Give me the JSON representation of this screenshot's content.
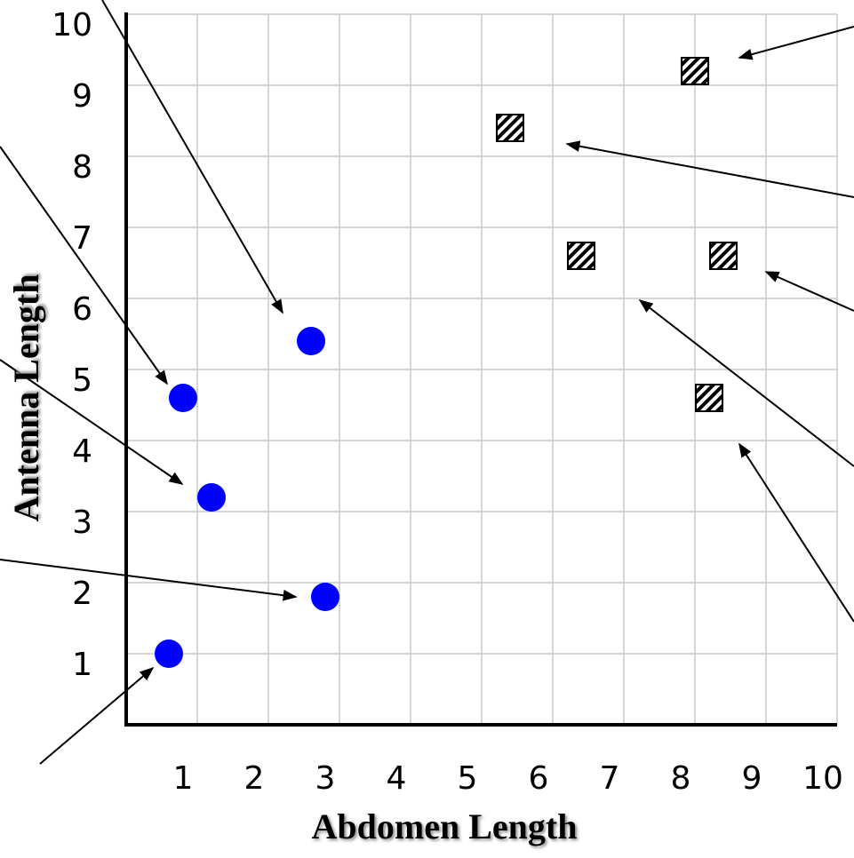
{
  "chart_data": {
    "type": "scatter",
    "x_label": "Abdomen Length",
    "y_label": "Antenna Length",
    "xlim": [
      0,
      10
    ],
    "ylim": [
      0,
      10
    ],
    "xticks": [
      1,
      2,
      3,
      4,
      5,
      6,
      7,
      8,
      9,
      10
    ],
    "yticks": [
      1,
      2,
      3,
      4,
      5,
      6,
      7,
      8,
      9,
      10
    ],
    "grid": true,
    "series": [
      {
        "color": "#0000ff",
        "marker": "circle",
        "x": [
          0.6,
          0.8,
          1.2,
          2.6,
          2.8
        ],
        "values": [
          1.0,
          4.6,
          3.2,
          5.4,
          1.8
        ]
      },
      {
        "color": "#ff0000",
        "marker": "hatched-square",
        "x": [
          8.0,
          5.4,
          6.4,
          8.4,
          8.2
        ],
        "values": [
          9.2,
          8.4,
          6.6,
          6.6,
          4.6
        ]
      }
    ]
  }
}
